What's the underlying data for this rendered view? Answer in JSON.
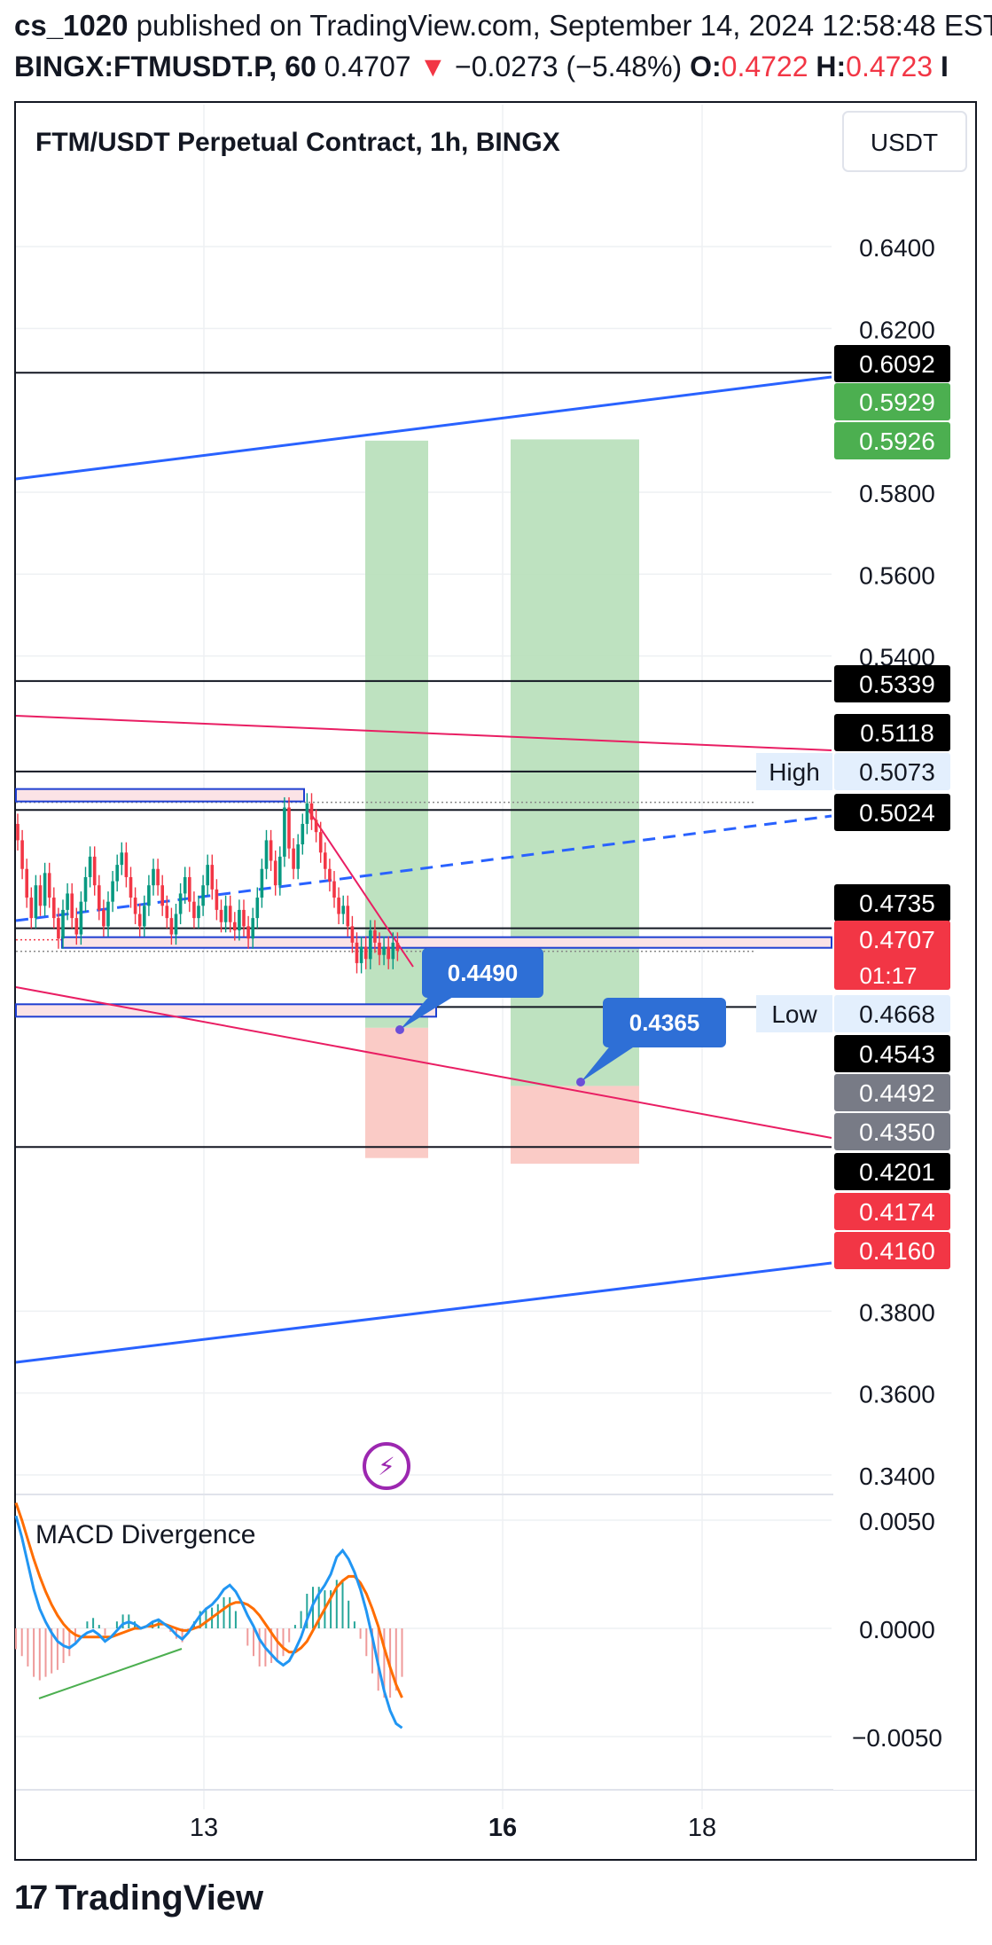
{
  "header": {
    "line1": "cs_1020 published on TradingView.com, September 14, 2024 12:58:48 EST",
    "author": "cs_1020",
    "line1_rest": " published on TradingView.com, September 14, 2024 12:58:48 EST",
    "symbol": "BINGX:FTMUSDT.P, 60",
    "last": "0.4707",
    "change": "−0.0273 (−5.48%)",
    "o_label": "O:",
    "o_value": "0.4722",
    "h_label": "H:",
    "h_value": "0.4723",
    "trail": "I"
  },
  "chart_title": "FTM/USDT Perpetual Contract, 1h, BINGX",
  "currency_button": "USDT",
  "footer_brand": "TradingView",
  "colors": {
    "up": "#089981",
    "down": "#f23645",
    "blue": "#2962ff",
    "green_zone": "#b7dfb9",
    "red_zone": "#f9c5c0",
    "pink_line": "#e91e63",
    "macd": "#2196f3",
    "signal": "#ff6d00"
  },
  "chart_data": [
    {
      "type": "line",
      "title": "FTM/USDT Perpetual Contract, 1h, BINGX",
      "yaxis": {
        "ticks": [
          0.64,
          0.62,
          0.58,
          0.56,
          0.54,
          0.38,
          0.36,
          0.34
        ],
        "tick_labels": [
          "0.6400",
          "0.6200",
          "0.5800",
          "0.5600",
          "0.5400",
          "0.3800",
          "0.3600",
          "0.3400"
        ],
        "range": [
          0.3355,
          0.6615
        ]
      },
      "xaxis": {
        "tick_labels": [
          "13",
          "16",
          "18"
        ],
        "bold": [
          "16"
        ]
      },
      "last_price": {
        "value": 0.4707,
        "countdown": "01:17"
      },
      "horizontal_levels": [
        0.6092,
        0.5339,
        0.5118,
        0.5024,
        0.4735,
        0.4543,
        0.4201
      ],
      "price_labels": [
        {
          "text": "0.6092",
          "style": "black"
        },
        {
          "text": "0.5929",
          "style": "green"
        },
        {
          "text": "0.5926",
          "style": "green"
        },
        {
          "text": "0.5339",
          "style": "black"
        },
        {
          "text": "0.5118",
          "style": "black"
        },
        {
          "text": "0.5073",
          "style": "light",
          "tag": "High"
        },
        {
          "text": "0.5024",
          "style": "black"
        },
        {
          "text": "0.4735",
          "style": "black"
        },
        {
          "text": "0.4707",
          "style": "red"
        },
        {
          "text": "0.4668",
          "style": "light",
          "tag": "Low"
        },
        {
          "text": "0.4543",
          "style": "black"
        },
        {
          "text": "0.4492",
          "style": "gray"
        },
        {
          "text": "0.4350",
          "style": "gray"
        },
        {
          "text": "0.4201",
          "style": "black"
        },
        {
          "text": "0.4174",
          "style": "red"
        },
        {
          "text": "0.4160",
          "style": "red"
        }
      ],
      "position_tools": [
        {
          "label": "0.4490",
          "entry": 0.4492,
          "target": 0.5926,
          "stop": 0.4174
        },
        {
          "label": "0.4365",
          "entry": 0.435,
          "target": 0.5929,
          "stop": 0.416
        }
      ],
      "price_series": [
        0.495,
        0.488,
        0.481,
        0.476,
        0.484,
        0.479,
        0.487,
        0.481,
        0.476,
        0.471,
        0.478,
        0.482,
        0.476,
        0.472,
        0.48,
        0.486,
        0.491,
        0.484,
        0.478,
        0.474,
        0.48,
        0.485,
        0.489,
        0.492,
        0.486,
        0.481,
        0.477,
        0.474,
        0.479,
        0.484,
        0.488,
        0.484,
        0.479,
        0.476,
        0.472,
        0.477,
        0.482,
        0.486,
        0.48,
        0.476,
        0.479,
        0.484,
        0.489,
        0.483,
        0.478,
        0.475,
        0.479,
        0.475,
        0.473,
        0.478,
        0.474,
        0.471,
        0.476,
        0.481,
        0.488,
        0.495,
        0.49,
        0.484,
        0.491,
        0.503,
        0.493,
        0.488,
        0.494,
        0.499,
        0.504,
        0.5,
        0.497,
        0.492,
        0.488,
        0.485,
        0.481,
        0.477,
        0.479,
        0.474,
        0.47,
        0.465,
        0.469,
        0.466,
        0.473,
        0.47,
        0.467,
        0.469,
        0.466,
        0.47,
        0.468
      ]
    },
    {
      "type": "line",
      "title": "MACD Divergence",
      "yaxis": {
        "ticks": [
          0.005,
          0.0,
          -0.005
        ],
        "tick_labels": [
          "0.0050",
          "0.0000",
          "−0.0050"
        ]
      },
      "series": [
        {
          "values": [
            0.0052,
            0.0042,
            0.003,
            0.0018,
            0.0009,
            0.0003,
            -0.0002,
            -0.0006,
            -0.0008,
            -0.0009,
            -0.0007,
            -0.0004,
            -0.0002,
            -0.0001,
            -0.0003,
            -0.0006,
            -0.0004,
            -0.0001,
            0.0002,
            0.0003,
            0.0002,
            0.0,
            0.0001,
            0.0003,
            0.0004,
            0.0002,
            0.0,
            -0.0003,
            -0.0005,
            -0.0002,
            0.0002,
            0.0006,
            0.0009,
            0.0011,
            0.0014,
            0.0018,
            0.002,
            0.0017,
            0.0012,
            0.0006,
            0.0001,
            -0.0005,
            -0.0009,
            -0.0012,
            -0.0015,
            -0.0017,
            -0.0015,
            -0.001,
            -0.0004,
            0.0004,
            0.0011,
            0.0016,
            0.002,
            0.0025,
            0.0033,
            0.0036,
            0.0032,
            0.0026,
            0.0018,
            0.0008,
            -0.0004,
            -0.0017,
            -0.0029,
            -0.0038,
            -0.0044,
            -0.0046
          ]
        },
        {
          "values": [
            0.0058,
            0.005,
            0.0041,
            0.0032,
            0.0024,
            0.0017,
            0.0011,
            0.0006,
            0.0002,
            -0.0001,
            -0.0003,
            -0.0004,
            -0.0004,
            -0.0004,
            -0.0004,
            -0.0004,
            -0.0004,
            -0.0003,
            -0.0002,
            -0.0001,
            0.0,
            0.0,
            0.0001,
            0.0001,
            0.0002,
            0.0002,
            0.0001,
            0.0,
            -0.0001,
            -0.0001,
            0.0,
            0.0001,
            0.0003,
            0.0005,
            0.0007,
            0.0009,
            0.0011,
            0.0012,
            0.0012,
            0.0011,
            0.0009,
            0.0006,
            0.0002,
            -0.0002,
            -0.0006,
            -0.0009,
            -0.0011,
            -0.0011,
            -0.0009,
            -0.0006,
            -0.0001,
            0.0004,
            0.0009,
            0.0014,
            0.0019,
            0.0022,
            0.0024,
            0.0024,
            0.0021,
            0.0016,
            0.0009,
            0.0001,
            -0.0009,
            -0.0018,
            -0.0026,
            -0.0032
          ]
        }
      ]
    }
  ]
}
